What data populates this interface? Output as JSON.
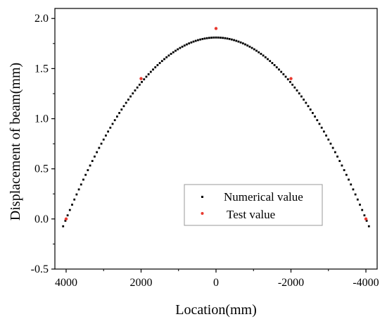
{
  "chart_data": {
    "type": "scatter",
    "xlabel": "Location(mm)",
    "ylabel": "Displacement of beam(mm)",
    "xlim": [
      4300,
      -4300
    ],
    "ylim": [
      -0.5,
      2.1
    ],
    "x_reversed": true,
    "x_ticks": [
      "4000",
      "2000",
      "0",
      "-2000",
      "-4000"
    ],
    "x_tick_values": [
      4000,
      2000,
      0,
      -2000,
      -4000
    ],
    "y_ticks": [
      "-0.5",
      "0.0",
      "0.5",
      "1.0",
      "1.5",
      "2.0"
    ],
    "y_tick_values": [
      -0.5,
      0.0,
      0.5,
      1.0,
      1.5,
      2.0
    ],
    "grid": false,
    "legend_position": "bottom-right",
    "series": [
      {
        "name": "Numerical value",
        "color": "#000000",
        "marker": "square",
        "curve": {
          "form": "parabola",
          "peak_x": 0,
          "peak_y": 1.81,
          "zero_at_abs_x": 4000,
          "x_from": -4080,
          "x_to": 4080,
          "step": 60
        }
      },
      {
        "name": "Test value",
        "color": "#e8392f",
        "marker": "circle",
        "points": [
          [
            4000,
            0.0
          ],
          [
            2000,
            1.4
          ],
          [
            0,
            1.9
          ],
          [
            -2000,
            1.4
          ],
          [
            -4000,
            0.0
          ]
        ]
      }
    ]
  }
}
